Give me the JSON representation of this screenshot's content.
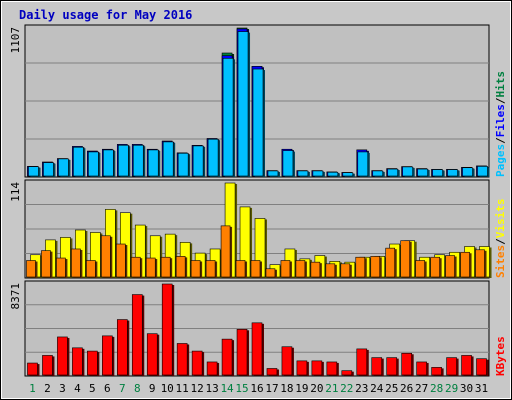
{
  "chart_data": {
    "type": "bar",
    "title": "Daily usage for May 2016",
    "categories": [
      "1",
      "2",
      "3",
      "4",
      "5",
      "6",
      "7",
      "8",
      "9",
      "10",
      "11",
      "12",
      "13",
      "14",
      "15",
      "16",
      "17",
      "18",
      "19",
      "20",
      "21",
      "22",
      "23",
      "24",
      "25",
      "26",
      "27",
      "28",
      "29",
      "30",
      "31"
    ],
    "weekend_days": [
      "1",
      "7",
      "8",
      "14",
      "15",
      "21",
      "22",
      "28",
      "29"
    ],
    "panels": [
      {
        "name": "pages-files-hits",
        "ymax_label": "1107",
        "ymax": 1107,
        "grid": true,
        "legend": [
          "Pages",
          "/",
          "Files",
          "/",
          "Hits"
        ],
        "legend_colors": [
          "#00c0ff",
          "#000000",
          "#0000ff",
          "#000000",
          "#008040"
        ],
        "series": [
          {
            "name": "Hits",
            "color": "#008040",
            "values": [
              72,
              104,
              130,
              221,
              186,
              200,
              236,
              236,
              200,
              261,
              173,
              229,
              280,
              920,
              1107,
              820,
              40,
              200,
              40,
              40,
              30,
              26,
              195,
              40,
              55,
              70,
              55,
              50,
              50,
              65,
              75
            ]
          },
          {
            "name": "Files",
            "color": "#0000ff",
            "values": [
              72,
              104,
              130,
              221,
              186,
              200,
              236,
              236,
              200,
              261,
              173,
              229,
              280,
              900,
              1100,
              820,
              40,
              200,
              40,
              40,
              30,
              26,
              195,
              40,
              55,
              70,
              55,
              50,
              50,
              65,
              75
            ]
          },
          {
            "name": "Pages",
            "color": "#00c0ff",
            "values": [
              70,
              100,
              128,
              215,
              180,
              195,
              230,
              230,
              195,
              255,
              170,
              225,
              275,
              880,
              1080,
              800,
              38,
              190,
              38,
              38,
              28,
              25,
              180,
              38,
              52,
              68,
              52,
              48,
              48,
              62,
              72
            ]
          }
        ]
      },
      {
        "name": "visits-sites",
        "ymax_label": "114",
        "ymax": 114,
        "grid": true,
        "legend": [
          "Sites",
          "/",
          "Visits"
        ],
        "legend_colors": [
          "#ff8000",
          "#000000",
          "#ffff00"
        ],
        "series": [
          {
            "name": "Visits",
            "color": "#ffff00",
            "values": [
              27,
              45,
              48,
              57,
              54,
              82,
              78,
              63,
              50,
              52,
              42,
              29,
              34,
              114,
              85,
              71,
              15,
              34,
              22,
              26,
              19,
              18,
              24,
              25,
              40,
              44,
              24,
              27,
              30,
              37,
              37
            ]
          },
          {
            "name": "Sites",
            "color": "#ff8000",
            "values": [
              20,
              32,
              23,
              34,
              20,
              50,
              40,
              24,
              23,
              24,
              25,
              20,
              20,
              62,
              20,
              20,
              10,
              20,
              20,
              18,
              16,
              16,
              24,
              25,
              35,
              44,
              20,
              24,
              26,
              30,
              33
            ]
          }
        ]
      },
      {
        "name": "kbytes",
        "ymax_label": "8371",
        "ymax": 8371,
        "grid": true,
        "legend": [
          "KBytes"
        ],
        "legend_colors": [
          "#ff0000"
        ],
        "series": [
          {
            "name": "KBytes",
            "color": "#ff0000",
            "values": [
              1100,
              1800,
              3500,
              2500,
              2200,
              3600,
              5100,
              7400,
              3800,
              8371,
              2900,
              2200,
              1200,
              3300,
              4200,
              4800,
              600,
              2600,
              1300,
              1300,
              1200,
              400,
              2400,
              1600,
              1600,
              2000,
              1200,
              700,
              1600,
              1800,
              1500
            ]
          }
        ]
      }
    ]
  }
}
